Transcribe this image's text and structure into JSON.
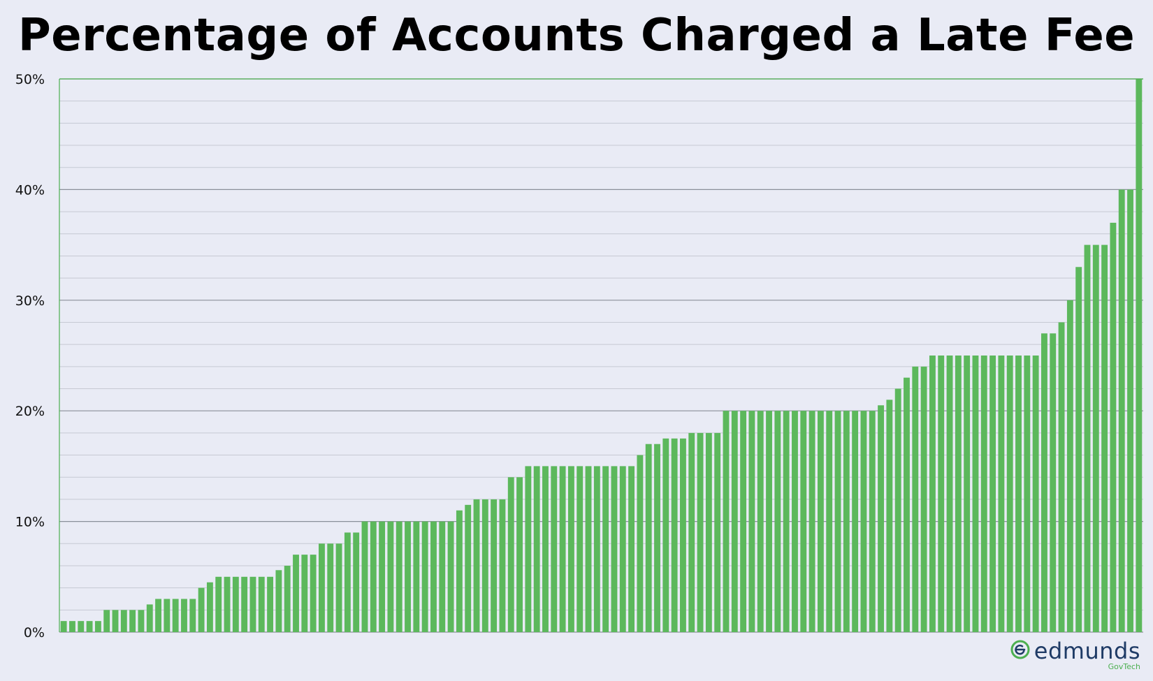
{
  "chart_data": {
    "type": "bar",
    "title": "Percentage of Accounts Charged a Late Fee",
    "xlabel": "",
    "ylabel": "",
    "ylim": [
      0,
      50
    ],
    "y_ticks": [
      "0%",
      "10%",
      "20%",
      "30%",
      "40%",
      "50%"
    ],
    "grid": true,
    "bar_color": "#5cb85c",
    "values": [
      1,
      1,
      1,
      1,
      1,
      2,
      2,
      2,
      2,
      2,
      2.5,
      3,
      3,
      3,
      3,
      3,
      4,
      4.5,
      5,
      5,
      5,
      5,
      5,
      5,
      5,
      5.6,
      6,
      7,
      7,
      7,
      8,
      8,
      8,
      9,
      9,
      10,
      10,
      10,
      10,
      10,
      10,
      10,
      10,
      10,
      10,
      10,
      11,
      11.5,
      12,
      12,
      12,
      12,
      14,
      14,
      15,
      15,
      15,
      15,
      15,
      15,
      15,
      15,
      15,
      15,
      15,
      15,
      15,
      16,
      17,
      17,
      17.5,
      17.5,
      17.5,
      18,
      18,
      18,
      18,
      20,
      20,
      20,
      20,
      20,
      20,
      20,
      20,
      20,
      20,
      20,
      20,
      20,
      20,
      20,
      20,
      20,
      20,
      20.5,
      21,
      22,
      23,
      24,
      24,
      25,
      25,
      25,
      25,
      25,
      25,
      25,
      25,
      25,
      25,
      25,
      25,
      25,
      27,
      27,
      28,
      30,
      33,
      35,
      35,
      35,
      37,
      40,
      40,
      50
    ]
  },
  "brand": {
    "name": "edmunds",
    "sub": "GovTech",
    "accent": "#4caf50",
    "text_color": "#1f3b66",
    "icon": "edmunds-logo-icon"
  }
}
